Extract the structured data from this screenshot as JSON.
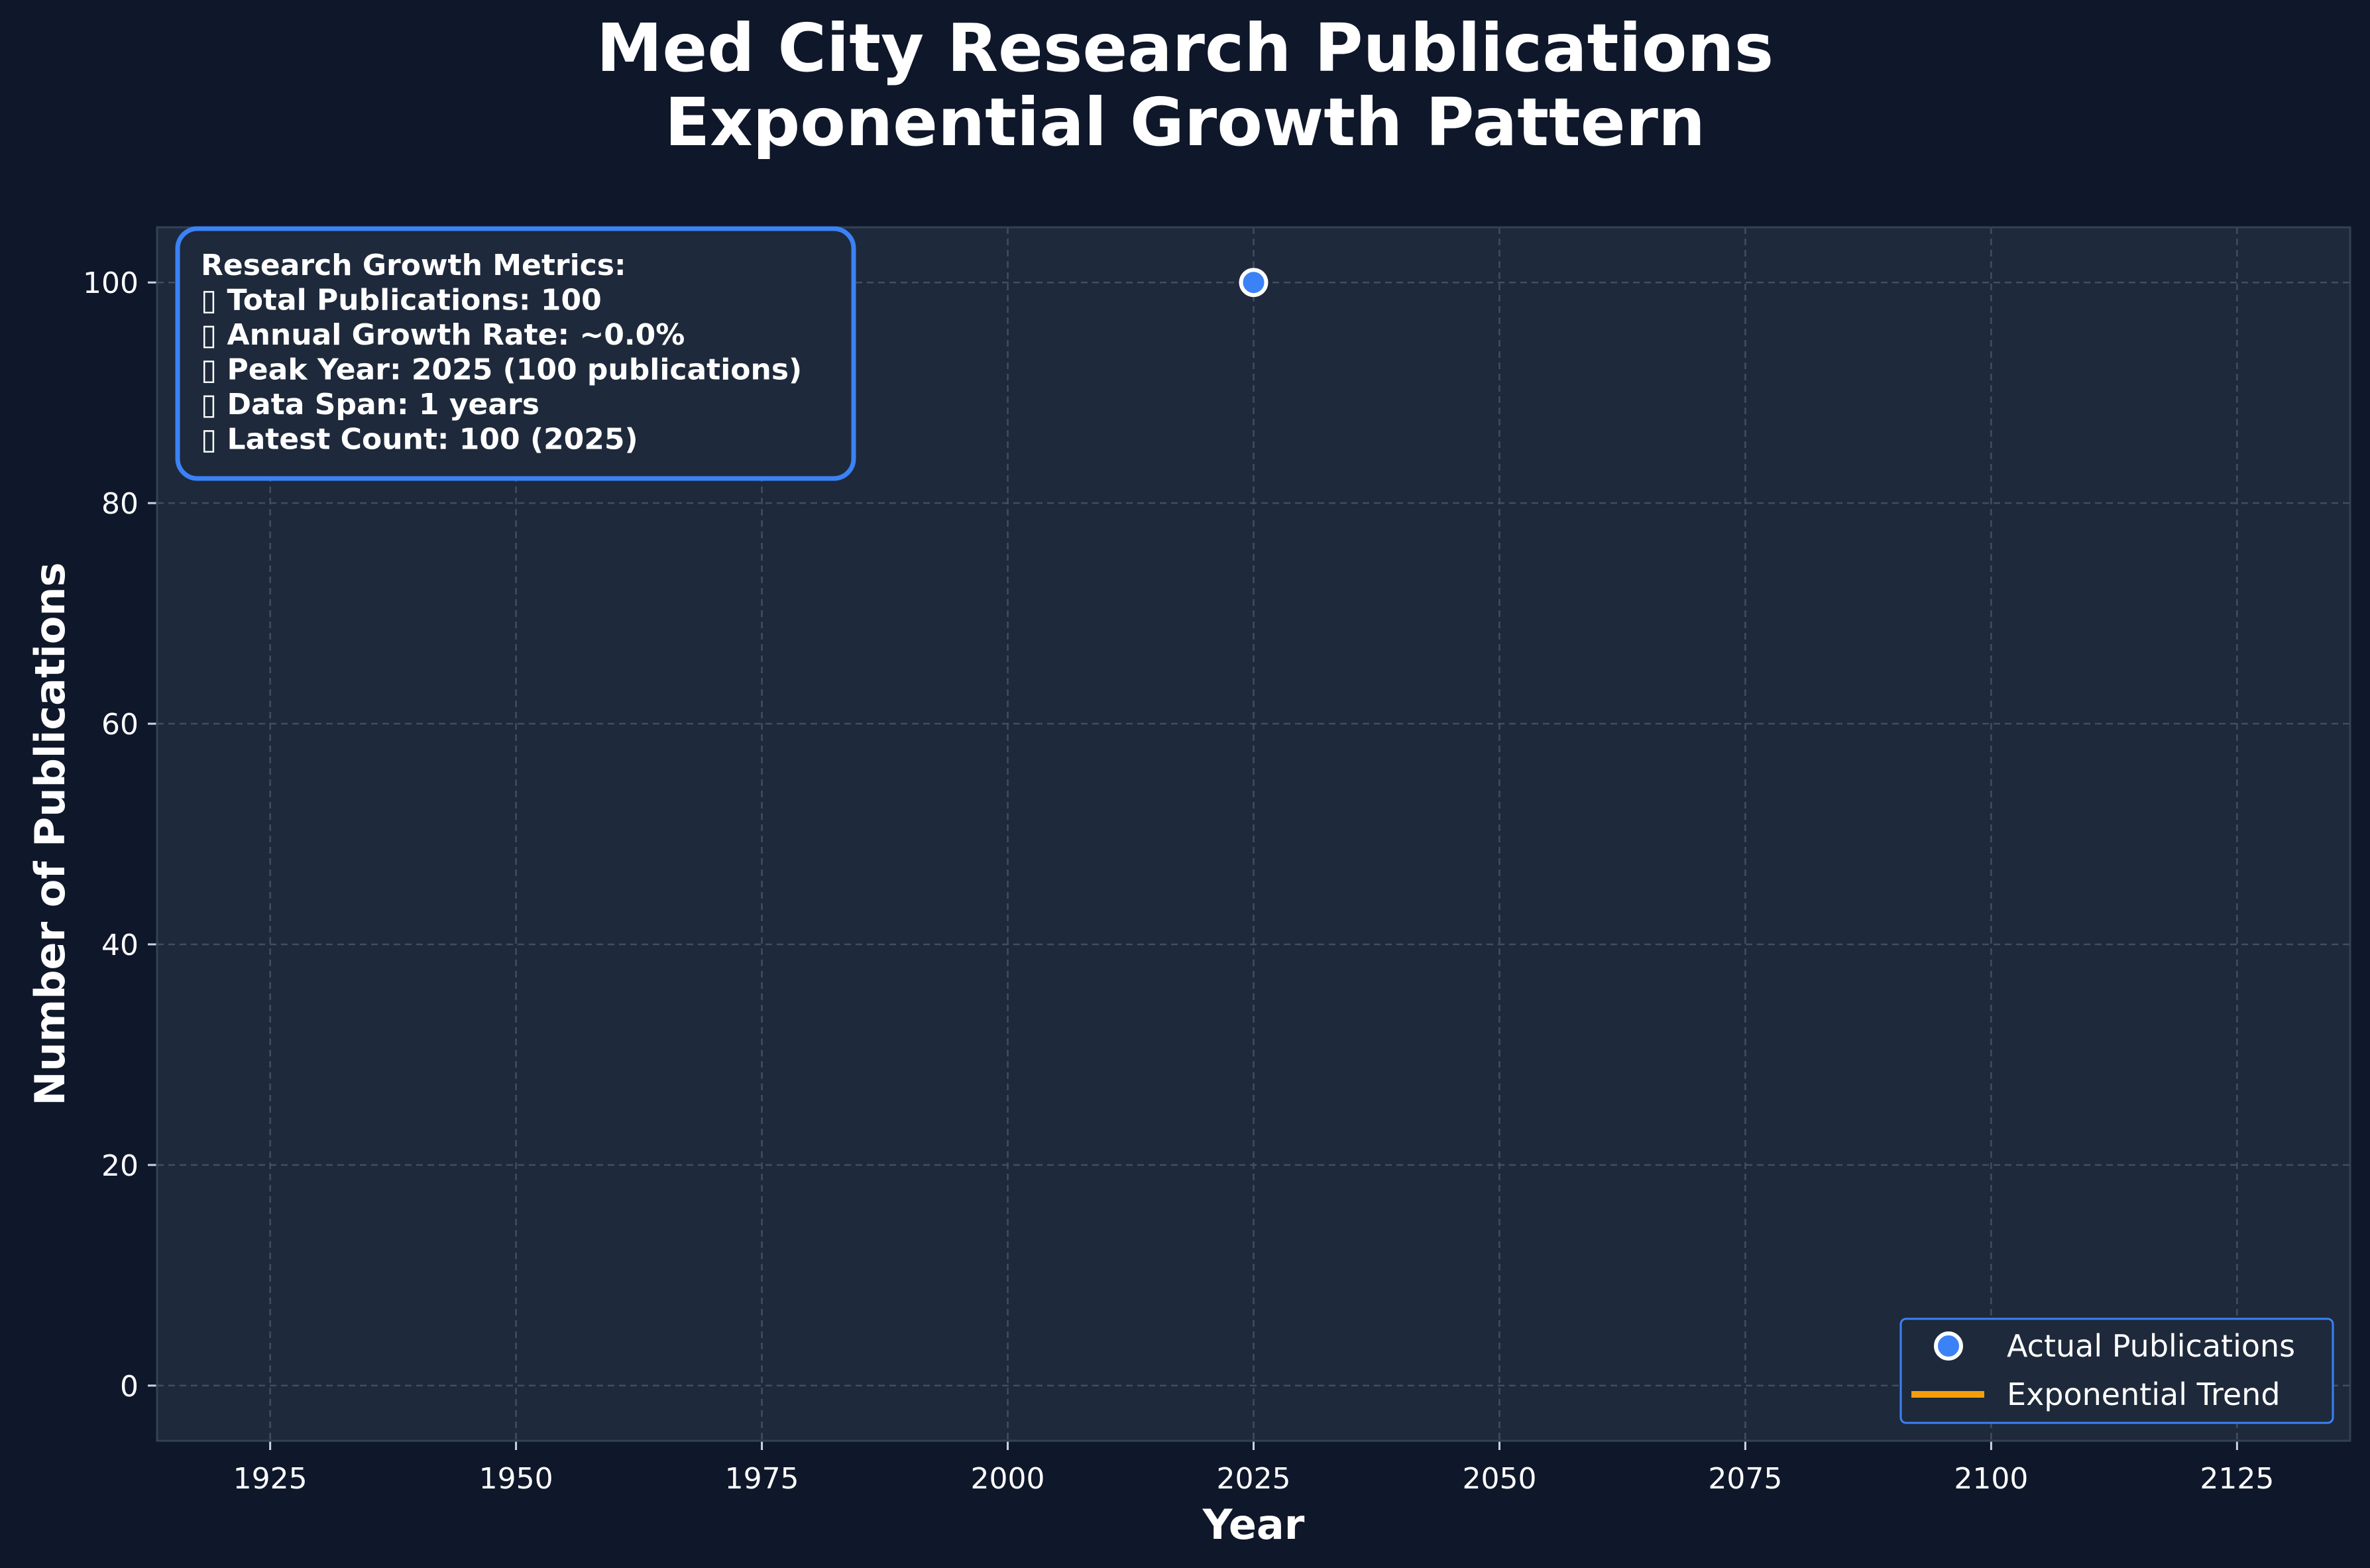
{
  "chart_data": {
    "type": "scatter",
    "title_lines": [
      "Med City Research Publications",
      "Exponential Growth Pattern"
    ],
    "xlabel": "Year",
    "ylabel": "Number of Publications",
    "xlim": [
      1913.5,
      2136.5
    ],
    "ylim": [
      -5,
      105
    ],
    "xticks": [
      1925,
      1950,
      1975,
      2000,
      2025,
      2050,
      2075,
      2100,
      2125
    ],
    "yticks": [
      0,
      20,
      40,
      60,
      80,
      100
    ],
    "grid": true,
    "series": [
      {
        "name": "Actual Publications",
        "kind": "scatter",
        "color": "#3b82f6",
        "points": [
          {
            "x": 2025,
            "y": 100
          }
        ]
      },
      {
        "name": "Exponential Trend",
        "kind": "line",
        "color": "#f59e0b",
        "points": []
      }
    ],
    "legend_position": "lower-right",
    "annotation": {
      "lines": [
        "Research Growth Metrics:",
        "▯ Total Publications: 100",
        "▯ Annual Growth Rate: ~0.0%",
        "▯ Peak Year: 2025 (100 publications)",
        "▯ Data Span: 1 years",
        "▯ Latest Count: 100 (2025)"
      ],
      "position": "upper-left"
    },
    "colors": {
      "background": "#0f172a",
      "plot_background": "#1e293b",
      "accent": "#3b82f6",
      "grid": "#475569"
    }
  }
}
